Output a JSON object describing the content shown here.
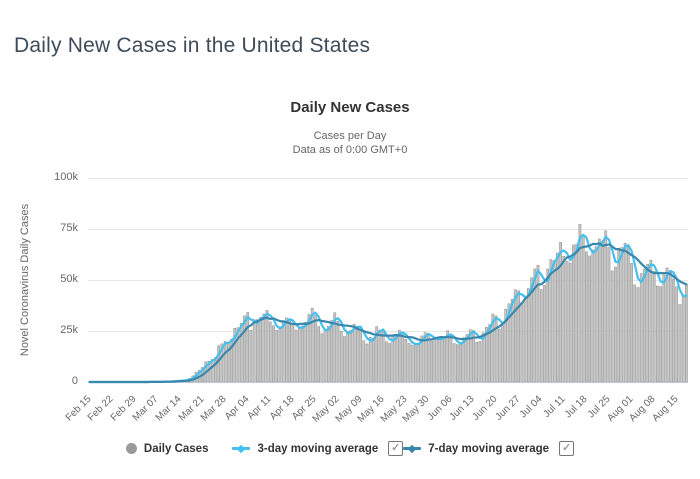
{
  "page": {
    "title": "Daily New Cases in the United States"
  },
  "chart": {
    "title": "Daily New Cases",
    "subtitle_line1": "Cases per Day",
    "subtitle_line2": "Data as of 0:00 GMT+0",
    "y_axis_title": "Novel Coronavirus Daily Cases"
  },
  "legend": {
    "daily_label": "Daily Cases",
    "ma3_label": "3-day moving average",
    "ma7_label": "7-day moving average",
    "ma3_checked": true,
    "ma7_checked": true,
    "daily_marker_color": "#999999"
  },
  "chart_data": {
    "type": "bar",
    "title": "Daily New Cases",
    "subtitle": [
      "Cases per Day",
      "Data as of 0:00 GMT+0"
    ],
    "ylabel": "Novel Coronavirus Daily Cases",
    "xlabel": "",
    "ylim": [
      0,
      100000
    ],
    "y_ticks": [
      0,
      25000,
      50000,
      75000,
      100000
    ],
    "y_tick_labels": [
      "0",
      "25k",
      "50k",
      "75k",
      "100k"
    ],
    "x_tick_interval_days": 7,
    "x_tick_labels": [
      "Feb 15",
      "Feb 22",
      "Feb 29",
      "Mar 07",
      "Mar 14",
      "Mar 21",
      "Mar 28",
      "Apr 04",
      "Apr 11",
      "Apr 18",
      "Apr 25",
      "May 02",
      "May 09",
      "May 16",
      "May 23",
      "May 30",
      "Jun 06",
      "Jun 13",
      "Jun 20",
      "Jun 27",
      "Jul 04",
      "Jul 11",
      "Jul 18",
      "Jul 25",
      "Aug 01",
      "Aug 08",
      "Aug 15"
    ],
    "grid": true,
    "grid_color": "#e6e6e6",
    "axis_line_color": "#ccd6eb",
    "legend_position": "bottom",
    "series": [
      {
        "name": "Daily Cases",
        "type": "bar",
        "color": "#c4c4c4",
        "border_color": "#8f8f8f",
        "start_date": "Feb 15",
        "end_date": "Aug 18",
        "values": [
          0,
          0,
          0,
          1,
          0,
          0,
          2,
          0,
          1,
          0,
          0,
          0,
          6,
          2,
          8,
          23,
          18,
          21,
          33,
          77,
          98,
          118,
          140,
          163,
          310,
          277,
          427,
          571,
          709,
          824,
          887,
          1766,
          2988,
          4835,
          5752,
          7123,
          9883,
          10189,
          11075,
          12038,
          17821,
          18695,
          19979,
          19027,
          20921,
          26365,
          26641,
          28819,
          32425,
          34068,
          25398,
          30561,
          30613,
          31667,
          33323,
          35098,
          29468,
          27620,
          25306,
          26366,
          30148,
          31451,
          30833,
          28101,
          25508,
          26543,
          27539,
          29266,
          33102,
          36188,
          32612,
          27218,
          23742,
          25480,
          27327,
          30158,
          33955,
          29744,
          24907,
          22303,
          24798,
          25459,
          28369,
          27348,
          25612,
          20258,
          18641,
          21952,
          21467,
          27143,
          25508,
          24487,
          19731,
          18873,
          22330,
          23285,
          25434,
          24147,
          21035,
          19052,
          18131,
          18721,
          18975,
          22577,
          24266,
          23792,
          20152,
          20982,
          21688,
          20722,
          22172,
          25176,
          22629,
          18873,
          18366,
          18998,
          21712,
          23283,
          25633,
          25274,
          19543,
          19870,
          24110,
          26824,
          28161,
          33327,
          32411,
          25977,
          27719,
          35695,
          38323,
          40526,
          45255,
          44726,
          38673,
          41590,
          45840,
          51097,
          55442,
          57236,
          45321,
          47486,
          55402,
          60021,
          59532,
          63247,
          68428,
          61696,
          59265,
          58349,
          67140,
          67632,
          77255,
          71558,
          63832,
          61795,
          64771,
          66281,
          70106,
          69116,
          74120,
          65965,
          54448,
          56336,
          65594,
          65935,
          68032,
          67023,
          58239,
          47576,
          46321,
          53139,
          55289,
          57706,
          59747,
          54184,
          47062,
          46754,
          52509,
          55927,
          54686,
          50505,
          46726,
          38000,
          41500,
          47500
        ]
      },
      {
        "name": "3-day moving average",
        "type": "line",
        "color": "#45bfed",
        "derived_from": "Daily Cases",
        "window": 3
      },
      {
        "name": "7-day moving average",
        "type": "line",
        "color": "#3a87ad",
        "derived_from": "Daily Cases",
        "window": 7
      }
    ]
  }
}
